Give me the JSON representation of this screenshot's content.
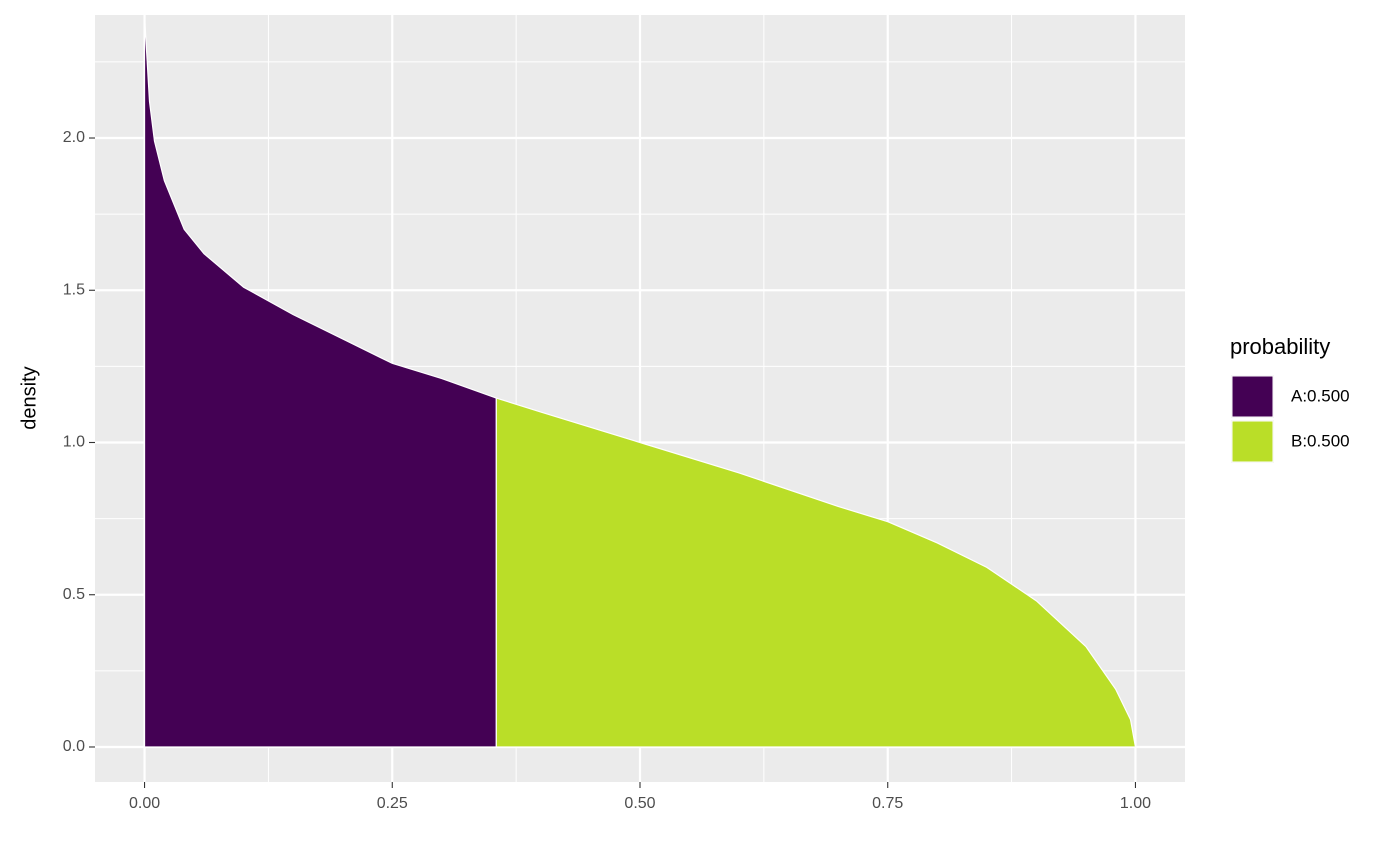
{
  "chart_data": {
    "type": "area",
    "ylabel": "density",
    "legend_title": "probability",
    "legend": "right",
    "grid": true,
    "series": [
      {
        "name": "A:0.500",
        "color": "#440154",
        "x": [
          0,
          0.005,
          0.01,
          0.02,
          0.04,
          0.06,
          0.1,
          0.15,
          0.2,
          0.25,
          0.3,
          0.355
        ],
        "values": [
          2.4,
          2.12,
          1.99,
          1.86,
          1.7,
          1.62,
          1.51,
          1.42,
          1.34,
          1.26,
          1.21,
          1.146
        ]
      },
      {
        "name": "B:0.500",
        "color": "#bade28",
        "x": [
          0.355,
          0.4,
          0.5,
          0.6,
          0.7,
          0.75,
          0.8,
          0.85,
          0.9,
          0.95,
          0.98,
          0.995,
          1
        ],
        "values": [
          1.146,
          1.1,
          1.0,
          0.9,
          0.79,
          0.74,
          0.67,
          0.59,
          0.48,
          0.33,
          0.19,
          0.09,
          0
        ]
      }
    ],
    "xlim": [
      -0.05,
      1.05
    ],
    "ylim": [
      -0.115,
      2.404
    ],
    "xticks": [
      {
        "value": 0,
        "label": "0.00"
      },
      {
        "value": 0.25,
        "label": "0.25"
      },
      {
        "value": 0.5,
        "label": "0.50"
      },
      {
        "value": 0.75,
        "label": "0.75"
      },
      {
        "value": 1,
        "label": "1.00"
      }
    ],
    "yticks": [
      {
        "value": 0,
        "label": "0.0"
      },
      {
        "value": 0.5,
        "label": "0.5"
      },
      {
        "value": 1,
        "label": "1.0"
      },
      {
        "value": 1.5,
        "label": "1.5"
      },
      {
        "value": 2,
        "label": "2.0"
      }
    ],
    "xminor": [
      0.125,
      0.375,
      0.625,
      0.875
    ],
    "yminor": [
      0.25,
      0.75,
      1.25,
      1.75,
      2.25
    ]
  }
}
